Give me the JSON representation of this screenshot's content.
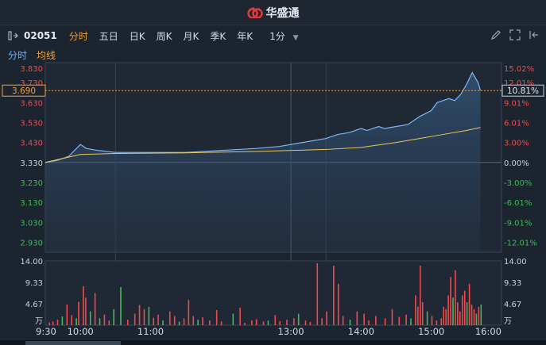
{
  "header": {
    "brand": "华盛通"
  },
  "toolbar": {
    "code": "02051",
    "tabs": [
      {
        "label": "分时",
        "active": true
      },
      {
        "label": "五日",
        "active": false
      },
      {
        "label": "日K",
        "active": false
      },
      {
        "label": "周K",
        "active": false
      },
      {
        "label": "月K",
        "active": false
      },
      {
        "label": "季K",
        "active": false
      },
      {
        "label": "年K",
        "active": false
      }
    ],
    "interval": "1分",
    "icons": [
      "pencil-icon",
      "fullscreen-icon",
      "collapse-icon"
    ]
  },
  "subtabs": {
    "time": "分时",
    "avg": "均线"
  },
  "price_axis": {
    "labels": [
      "3.830",
      "3.730",
      "3.630",
      "3.530",
      "3.430",
      "3.330",
      "3.230",
      "3.130",
      "3.030",
      "2.930"
    ],
    "pct_labels": [
      "15.02%",
      "12.01%",
      "9.01%",
      "6.01%",
      "3.00%",
      "0.00%",
      "-3.00%",
      "-6.01%",
      "-9.01%",
      "-12.01%"
    ],
    "current_price": "3.690",
    "current_pct": "10.81%"
  },
  "volume_axis": {
    "labels": [
      "14.00",
      "9.33",
      "4.67",
      "万"
    ]
  },
  "time_axis": [
    "9:30",
    "10:00",
    "11:00",
    "13:00",
    "14:00",
    "15:00",
    "16:00"
  ],
  "colors": {
    "up": "#ef4b4b",
    "down": "#3dbb59",
    "price_line": "#7fb6f2",
    "avg_line": "#f0c75a",
    "accent": "#f3a335"
  },
  "chart_data": {
    "type": "line",
    "x_unit": "minutes since 9:30",
    "ylim": [
      2.88,
      3.83
    ],
    "base_price": 3.33,
    "series": [
      {
        "name": "分时",
        "points": [
          [
            0,
            3.33
          ],
          [
            10,
            3.34
          ],
          [
            20,
            3.36
          ],
          [
            25,
            3.39
          ],
          [
            30,
            3.42
          ],
          [
            35,
            3.4
          ],
          [
            45,
            3.39
          ],
          [
            60,
            3.38
          ],
          [
            90,
            3.38
          ],
          [
            120,
            3.38
          ],
          [
            150,
            3.39
          ],
          [
            180,
            3.4
          ],
          [
            200,
            3.41
          ],
          [
            220,
            3.43
          ],
          [
            240,
            3.45
          ],
          [
            250,
            3.47
          ],
          [
            260,
            3.48
          ],
          [
            270,
            3.5
          ],
          [
            275,
            3.49
          ],
          [
            285,
            3.51
          ],
          [
            290,
            3.5
          ],
          [
            300,
            3.51
          ],
          [
            310,
            3.52
          ],
          [
            320,
            3.56
          ],
          [
            330,
            3.59
          ],
          [
            335,
            3.63
          ],
          [
            345,
            3.65
          ],
          [
            350,
            3.64
          ],
          [
            355,
            3.67
          ],
          [
            360,
            3.72
          ],
          [
            365,
            3.78
          ],
          [
            370,
            3.73
          ],
          [
            372,
            3.69
          ]
        ]
      },
      {
        "name": "均线",
        "points": [
          [
            0,
            3.33
          ],
          [
            30,
            3.37
          ],
          [
            60,
            3.375
          ],
          [
            120,
            3.378
          ],
          [
            180,
            3.385
          ],
          [
            240,
            3.395
          ],
          [
            270,
            3.405
          ],
          [
            300,
            3.43
          ],
          [
            320,
            3.45
          ],
          [
            340,
            3.47
          ],
          [
            360,
            3.49
          ],
          [
            372,
            3.505
          ]
        ]
      }
    ],
    "volume": {
      "unit": "万",
      "ylim": [
        0,
        14.0
      ],
      "bars": [
        [
          3,
          0.6,
          1
        ],
        [
          6,
          0.8,
          1
        ],
        [
          10,
          1.2,
          1
        ],
        [
          14,
          1.9,
          0
        ],
        [
          18,
          4.5,
          1
        ],
        [
          22,
          2.2,
          1
        ],
        [
          26,
          1.5,
          0
        ],
        [
          28,
          5.1,
          1
        ],
        [
          32,
          8.5,
          1
        ],
        [
          34,
          6.0,
          1
        ],
        [
          38,
          3.0,
          0
        ],
        [
          42,
          7.0,
          1
        ],
        [
          46,
          1.5,
          0
        ],
        [
          50,
          2.3,
          1
        ],
        [
          54,
          1.0,
          1
        ],
        [
          58,
          3.5,
          0
        ],
        [
          64,
          8.3,
          0
        ],
        [
          70,
          1.2,
          1
        ],
        [
          76,
          2.5,
          1
        ],
        [
          80,
          4.4,
          1
        ],
        [
          84,
          3.5,
          1
        ],
        [
          88,
          4.0,
          0
        ],
        [
          92,
          1.6,
          1
        ],
        [
          96,
          2.3,
          1
        ],
        [
          100,
          1.0,
          0
        ],
        [
          106,
          3.0,
          1
        ],
        [
          110,
          2.0,
          1
        ],
        [
          114,
          0.8,
          0
        ],
        [
          118,
          1.5,
          1
        ],
        [
          122,
          5.5,
          1
        ],
        [
          126,
          2.0,
          1
        ],
        [
          130,
          1.2,
          0
        ],
        [
          134,
          1.7,
          1
        ],
        [
          140,
          1.0,
          1
        ],
        [
          146,
          3.3,
          1
        ],
        [
          150,
          0.8,
          1
        ],
        [
          160,
          2.5,
          0
        ],
        [
          166,
          3.8,
          1
        ],
        [
          170,
          0.5,
          1
        ],
        [
          176,
          1.0,
          1
        ],
        [
          180,
          1.3,
          1
        ],
        [
          186,
          0.8,
          1
        ],
        [
          190,
          1.0,
          0
        ],
        [
          196,
          2.2,
          1
        ],
        [
          200,
          0.9,
          1
        ],
        [
          206,
          1.2,
          1
        ],
        [
          212,
          1.5,
          1
        ],
        [
          216,
          2.5,
          0
        ],
        [
          222,
          1.0,
          1
        ],
        [
          226,
          0.7,
          1
        ],
        [
          232,
          13.5,
          1
        ],
        [
          236,
          1.5,
          1
        ],
        [
          240,
          3.0,
          1
        ],
        [
          246,
          13.0,
          1
        ],
        [
          250,
          9.0,
          1
        ],
        [
          254,
          2.0,
          1
        ],
        [
          260,
          1.2,
          0
        ],
        [
          266,
          3.0,
          1
        ],
        [
          272,
          2.5,
          1
        ],
        [
          276,
          1.0,
          1
        ],
        [
          282,
          2.0,
          1
        ],
        [
          290,
          1.5,
          1
        ],
        [
          296,
          3.5,
          1
        ],
        [
          302,
          1.8,
          1
        ],
        [
          308,
          2.3,
          1
        ],
        [
          312,
          1.5,
          0
        ],
        [
          316,
          6.5,
          1
        ],
        [
          318,
          4.0,
          1
        ],
        [
          320,
          13.0,
          1
        ],
        [
          322,
          5.0,
          1
        ],
        [
          326,
          3.0,
          0
        ],
        [
          330,
          2.0,
          1
        ],
        [
          334,
          1.0,
          1
        ],
        [
          338,
          1.5,
          1
        ],
        [
          340,
          4.0,
          1
        ],
        [
          342,
          3.5,
          1
        ],
        [
          344,
          6.5,
          1
        ],
        [
          346,
          10.5,
          1
        ],
        [
          348,
          6.0,
          0
        ],
        [
          350,
          12.0,
          1
        ],
        [
          352,
          5.0,
          1
        ],
        [
          354,
          3.0,
          1
        ],
        [
          356,
          6.5,
          1
        ],
        [
          358,
          7.5,
          1
        ],
        [
          360,
          5.0,
          0
        ],
        [
          362,
          9.0,
          1
        ],
        [
          364,
          4.5,
          1
        ],
        [
          366,
          3.5,
          1
        ],
        [
          368,
          2.5,
          0
        ],
        [
          370,
          4.0,
          1
        ],
        [
          372,
          4.5,
          0
        ]
      ]
    }
  }
}
